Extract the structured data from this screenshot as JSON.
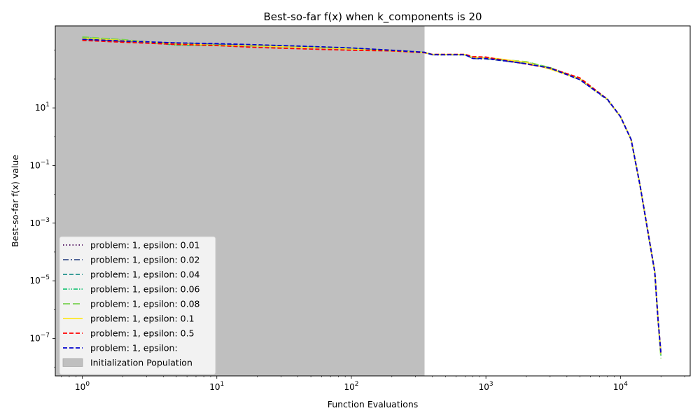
{
  "chart_data": {
    "type": "line",
    "title": "Best-so-far f(x) when k_components is 20",
    "xlabel": "Function Evaluations",
    "ylabel": "Best-so-far f(x) value",
    "xscale": "log",
    "yscale": "log",
    "xlim": [
      0.63,
      33000
    ],
    "ylim": [
      5e-09,
      7000
    ],
    "grid": false,
    "legend_position": "lower-left",
    "x_ticks": [
      {
        "value": 1,
        "base": "10",
        "exp": "0"
      },
      {
        "value": 10,
        "base": "10",
        "exp": "1"
      },
      {
        "value": 100,
        "base": "10",
        "exp": "2"
      },
      {
        "value": 1000,
        "base": "10",
        "exp": "3"
      },
      {
        "value": 10000,
        "base": "10",
        "exp": "4"
      }
    ],
    "y_ticks": [
      {
        "value": 1e-07,
        "base": "10",
        "exp": "−7"
      },
      {
        "value": 1e-05,
        "base": "10",
        "exp": "−5"
      },
      {
        "value": 0.001,
        "base": "10",
        "exp": "−3"
      },
      {
        "value": 0.1,
        "base": "10",
        "exp": "−1"
      },
      {
        "value": 10,
        "base": "10",
        "exp": "1"
      }
    ],
    "shaded_region": {
      "label": "Initialization Population",
      "x_start": 0.63,
      "x_end": 350,
      "color": "#bfbfbf"
    },
    "series": [
      {
        "name": "problem: 1, epsilon: 0.01",
        "color": "#440154",
        "dash": "dotted",
        "x": [
          1,
          2,
          5,
          10,
          20,
          50,
          100,
          200,
          350,
          400,
          700,
          800,
          1000,
          1200,
          2000,
          3000,
          5000,
          8000,
          10000,
          12000,
          14000,
          16000,
          18000,
          19000,
          20000
        ],
        "y": [
          2300,
          2000,
          1800,
          1650,
          1500,
          1300,
          1150,
          1000,
          850,
          700,
          700,
          520,
          500,
          480,
          350,
          250,
          100,
          20,
          5,
          0.8,
          0.02,
          0.0005,
          2e-05,
          5e-07,
          3e-08
        ]
      },
      {
        "name": "problem: 1, epsilon: 0.02",
        "color": "#3b528b",
        "dash": "dashdot",
        "x": [
          1,
          2,
          5,
          10,
          20,
          50,
          100,
          200,
          350,
          400,
          700,
          800,
          1000,
          1200,
          2000,
          3000,
          5000,
          8000,
          10000,
          12000,
          14000,
          16000,
          18000,
          19000,
          20000
        ],
        "y": [
          2400,
          2050,
          1750,
          1600,
          1450,
          1280,
          1120,
          980,
          820,
          700,
          700,
          520,
          500,
          460,
          340,
          240,
          95,
          19,
          5,
          0.8,
          0.02,
          0.0005,
          2e-05,
          5e-07,
          3e-08
        ]
      },
      {
        "name": "problem: 1, epsilon: 0.04",
        "color": "#21918c",
        "dash": "dashed",
        "x": [
          1,
          2,
          5,
          10,
          20,
          50,
          100,
          200,
          350,
          400,
          700,
          800,
          1000,
          1200,
          2000,
          3000,
          5000,
          8000,
          10000,
          12000,
          14000,
          16000,
          18000,
          19000,
          20000
        ],
        "y": [
          2500,
          2100,
          1700,
          1550,
          1400,
          1250,
          1100,
          960,
          830,
          710,
          700,
          540,
          520,
          470,
          350,
          240,
          98,
          20,
          5,
          0.8,
          0.02,
          0.0005,
          2e-05,
          5e-07,
          3e-08
        ]
      },
      {
        "name": "problem: 1, epsilon: 0.06",
        "color": "#22c57a",
        "dash": "dashdotdot",
        "x": [
          1,
          2,
          5,
          10,
          20,
          50,
          100,
          200,
          350,
          400,
          700,
          800,
          1000,
          1200,
          2000,
          3000,
          5000,
          8000,
          10000,
          12000,
          14000,
          16000,
          18000,
          19000,
          20000
        ],
        "y": [
          2800,
          2300,
          1500,
          1450,
          1400,
          1300,
          1150,
          970,
          840,
          720,
          710,
          560,
          540,
          480,
          380,
          250,
          100,
          20,
          5,
          0.8,
          0.02,
          0.0005,
          2e-05,
          5e-07,
          2.5e-08
        ]
      },
      {
        "name": "problem: 1, epsilon: 0.08",
        "color": "#7ad151",
        "dash": "longdash",
        "x": [
          1,
          2,
          5,
          10,
          20,
          50,
          100,
          200,
          350,
          400,
          700,
          800,
          1000,
          1200,
          2000,
          3000,
          5000,
          8000,
          10000,
          12000,
          14000,
          16000,
          18000,
          19000,
          20000
        ],
        "y": [
          2900,
          2350,
          1550,
          1450,
          1380,
          1250,
          1100,
          960,
          820,
          710,
          700,
          560,
          550,
          490,
          400,
          250,
          100,
          20,
          5,
          0.8,
          0.02,
          0.0005,
          2e-05,
          5e-07,
          2e-08
        ]
      },
      {
        "name": "problem: 1, epsilon: 0.1",
        "color": "#fde725",
        "dash": "solid",
        "x": [
          1,
          2,
          5,
          10,
          20,
          50,
          100,
          200,
          350,
          400,
          700,
          800,
          1000,
          1200,
          2000,
          3000,
          5000,
          8000,
          10000,
          12000,
          14000,
          16000,
          18000,
          19000,
          20000
        ],
        "y": [
          2600,
          2200,
          1650,
          1500,
          1400,
          1250,
          1100,
          960,
          830,
          720,
          720,
          560,
          540,
          520,
          380,
          220,
          100,
          20,
          5,
          0.8,
          0.02,
          0.0005,
          2e-05,
          5e-07,
          3e-08
        ]
      },
      {
        "name": "problem: 1, epsilon: 0.5",
        "color": "#ff0000",
        "dash": "dashed",
        "x": [
          1,
          2,
          5,
          10,
          20,
          50,
          100,
          200,
          350,
          400,
          700,
          800,
          1000,
          1200,
          2000,
          3000,
          5000,
          8000,
          10000,
          12000,
          14000,
          16000,
          18000,
          19000,
          20000
        ],
        "y": [
          2200,
          1900,
          1600,
          1450,
          1250,
          1100,
          1000,
          950,
          820,
          720,
          720,
          600,
          580,
          500,
          330,
          240,
          110,
          20,
          5,
          0.8,
          0.02,
          0.0005,
          2e-05,
          5e-07,
          3e-08
        ]
      },
      {
        "name": "problem: 1, epsilon:",
        "color": "#0000cd",
        "dash": "dashed",
        "x": [
          1,
          2,
          5,
          10,
          20,
          50,
          100,
          200,
          350,
          400,
          700,
          800,
          1000,
          1200,
          2000,
          3000,
          5000,
          8000,
          10000,
          12000,
          14000,
          16000,
          18000,
          19000,
          20000
        ],
        "y": [
          2400,
          2100,
          1800,
          1700,
          1550,
          1350,
          1200,
          1000,
          850,
          700,
          700,
          520,
          520,
          470,
          340,
          240,
          95,
          20,
          5,
          0.8,
          0.02,
          0.0005,
          2e-05,
          5e-07,
          3e-08
        ]
      }
    ]
  }
}
